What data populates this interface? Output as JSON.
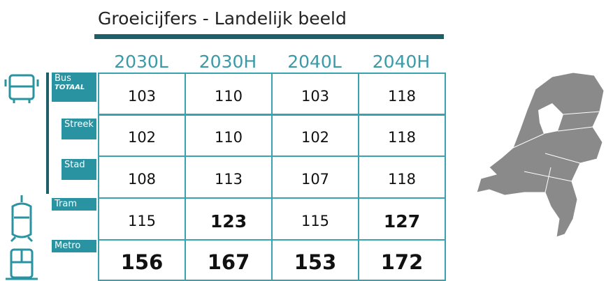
{
  "title": "Groeicijfers - Landelijk beeld",
  "table": {
    "columns": [
      "2030L",
      "2030H",
      "2040L",
      "2040H"
    ],
    "rows": [
      {
        "label": "Bus",
        "sublabel": "TOTAAL",
        "values": [
          103,
          110,
          103,
          118
        ]
      },
      {
        "label": "Streek",
        "values": [
          102,
          110,
          102,
          118
        ]
      },
      {
        "label": "Stad",
        "values": [
          108,
          113,
          107,
          118
        ]
      },
      {
        "label": "Tram",
        "values": [
          115,
          123,
          115,
          127
        ]
      },
      {
        "label": "Metro",
        "values": [
          156,
          167,
          153,
          172
        ]
      }
    ]
  }
}
